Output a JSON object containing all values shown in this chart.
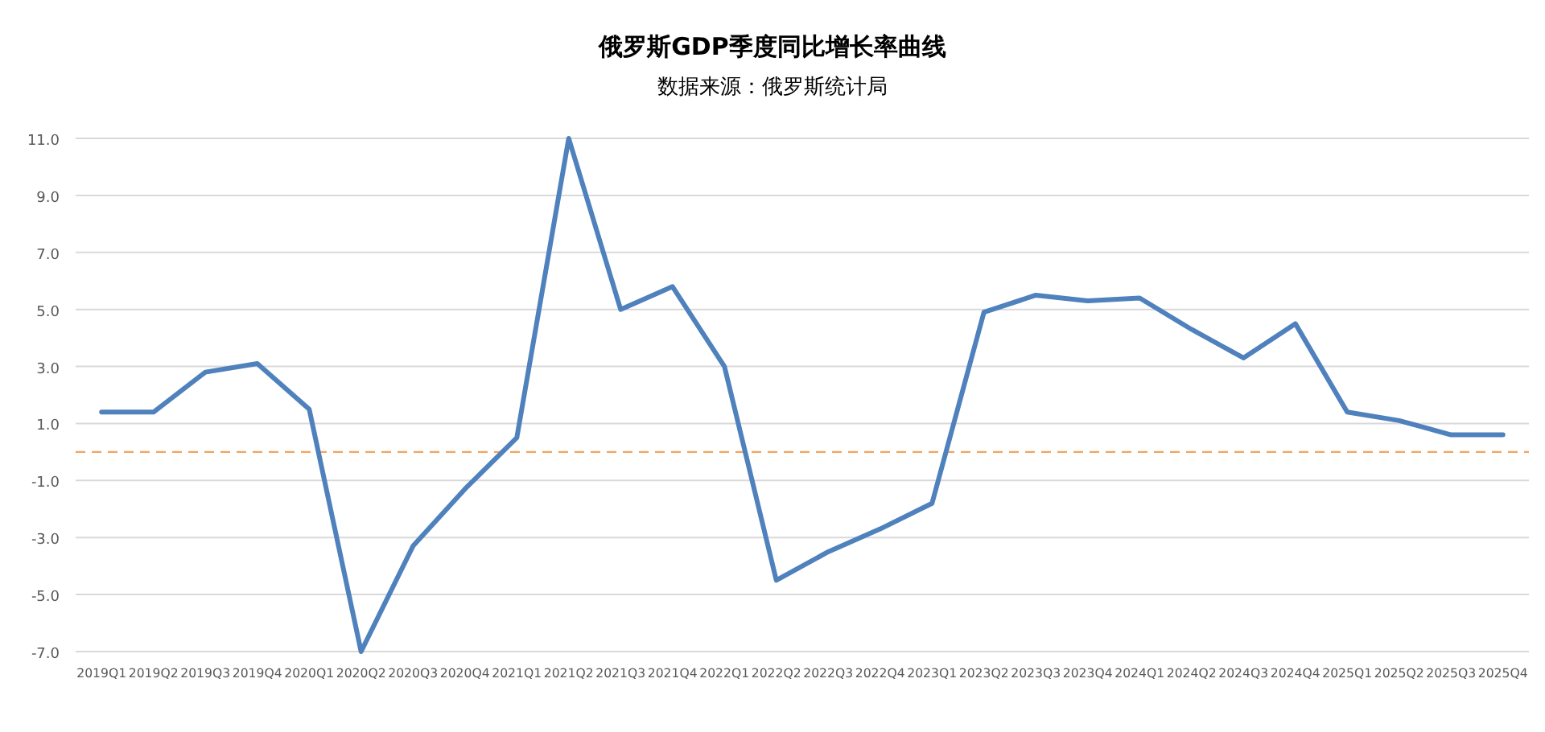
{
  "chart_data": {
    "type": "line",
    "title": "俄罗斯GDP季度同比增长率曲线",
    "subtitle": "数据来源：俄罗斯统计局",
    "categories": [
      "2019Q1",
      "2019Q2",
      "2019Q3",
      "2019Q4",
      "2020Q1",
      "2020Q2",
      "2020Q3",
      "2020Q4",
      "2021Q1",
      "2021Q2",
      "2021Q3",
      "2021Q4",
      "2022Q1",
      "2022Q2",
      "2022Q3",
      "2022Q4",
      "2023Q1",
      "2023Q2",
      "2023Q3",
      "2023Q4",
      "2024Q1",
      "2024Q2",
      "2024Q3",
      "2024Q4",
      "2025Q1",
      "2025Q2",
      "2025Q3",
      "2025Q4"
    ],
    "series": [
      {
        "color": "#4f81bd",
        "values": [
          1.4,
          1.4,
          2.8,
          3.1,
          1.5,
          -7.0,
          -3.3,
          -1.3,
          0.5,
          11.0,
          5.0,
          5.8,
          3.0,
          -4.5,
          -3.5,
          -2.7,
          -1.8,
          4.9,
          5.5,
          5.3,
          5.4,
          4.3,
          3.3,
          4.5,
          1.4,
          1.1,
          0.6,
          0.6
        ]
      }
    ],
    "ylim": [
      -7,
      11
    ],
    "yticks": [
      {
        "value": -7,
        "label": "-7.0"
      },
      {
        "value": -5,
        "label": "-5.0"
      },
      {
        "value": -3,
        "label": "-3.0"
      },
      {
        "value": -1,
        "label": "-1.0"
      },
      {
        "value": 1,
        "label": "1.0"
      },
      {
        "value": 3,
        "label": "3.0"
      },
      {
        "value": 5,
        "label": "5.0"
      },
      {
        "value": 7,
        "label": "7.0"
      },
      {
        "value": 9,
        "label": "9.0"
      },
      {
        "value": 11,
        "label": "11.0"
      }
    ],
    "ref_lines": [
      {
        "axis": "y",
        "value": 0,
        "color": "#f4a460",
        "line_style": "dashed"
      }
    ],
    "grid": "y",
    "marker": "none",
    "line_style": "solid"
  }
}
